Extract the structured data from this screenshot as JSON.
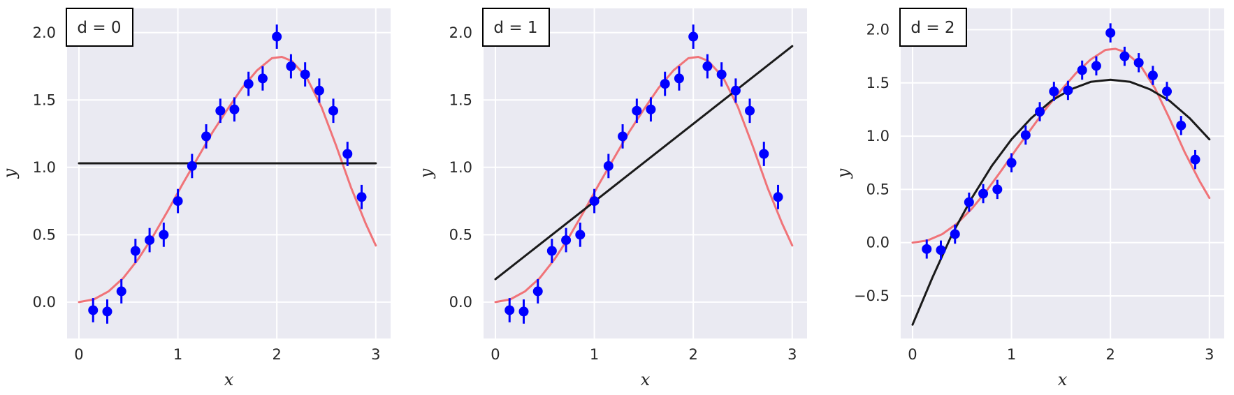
{
  "chart_data": [
    {
      "type": "scatter",
      "title": "",
      "legend": "d = 0",
      "legend_position": "top-left",
      "xlabel": "x",
      "ylabel": "y",
      "xlim": [
        -0.12,
        3.15
      ],
      "ylim": [
        -0.27,
        2.18
      ],
      "xticks": [
        0,
        1,
        2,
        3
      ],
      "xtick_labels": [
        "0",
        "1",
        "2",
        "3"
      ],
      "yticks": [
        0.0,
        0.5,
        1.0,
        1.5,
        2.0
      ],
      "ytick_labels": [
        "0.0",
        "0.5",
        "1.0",
        "1.5",
        "2.0"
      ],
      "grid": true,
      "fit_degree": 0
    },
    {
      "type": "scatter",
      "title": "",
      "legend": "d = 1",
      "legend_position": "top-left",
      "xlabel": "x",
      "ylabel": "y",
      "xlim": [
        -0.12,
        3.15
      ],
      "ylim": [
        -0.27,
        2.18
      ],
      "xticks": [
        0,
        1,
        2,
        3
      ],
      "xtick_labels": [
        "0",
        "1",
        "2",
        "3"
      ],
      "yticks": [
        0.0,
        0.5,
        1.0,
        1.5,
        2.0
      ],
      "ytick_labels": [
        "0.0",
        "0.5",
        "1.0",
        "1.5",
        "2.0"
      ],
      "grid": true,
      "fit_degree": 1
    },
    {
      "type": "scatter",
      "title": "",
      "legend": "d = 2",
      "legend_position": "top-left",
      "xlabel": "x",
      "ylabel": "y",
      "xlim": [
        -0.12,
        3.15
      ],
      "ylim": [
        -0.9,
        2.2
      ],
      "xticks": [
        0,
        1,
        2,
        3
      ],
      "xtick_labels": [
        "0",
        "1",
        "2",
        "3"
      ],
      "yticks": [
        -0.5,
        0.0,
        0.5,
        1.0,
        1.5,
        2.0
      ],
      "ytick_labels": [
        "−0.5",
        "0.0",
        "0.5",
        "1.0",
        "1.5",
        "2.0"
      ],
      "grid": true,
      "fit_degree": 2
    }
  ],
  "observations": {
    "x": [
      0.143,
      0.286,
      0.429,
      0.571,
      0.714,
      0.857,
      1.0,
      1.143,
      1.286,
      1.429,
      1.571,
      1.714,
      1.857,
      2.0,
      2.143,
      2.286,
      2.429,
      2.571,
      2.714,
      2.857
    ],
    "y": [
      -0.06,
      -0.07,
      0.08,
      0.38,
      0.46,
      0.5,
      0.75,
      1.01,
      1.23,
      1.42,
      1.43,
      1.62,
      1.66,
      1.97,
      1.75,
      1.69,
      1.57,
      1.42,
      1.1,
      0.78
    ],
    "error": 0.09
  },
  "true_curve": {
    "x": [
      0.0,
      0.15,
      0.3,
      0.45,
      0.6,
      0.75,
      0.9,
      1.05,
      1.2,
      1.35,
      1.5,
      1.65,
      1.8,
      1.95,
      2.05,
      2.15,
      2.3,
      2.45,
      2.6,
      2.75,
      2.9,
      3.0
    ],
    "y": [
      0.0,
      0.02,
      0.08,
      0.18,
      0.32,
      0.49,
      0.68,
      0.88,
      1.07,
      1.26,
      1.43,
      1.59,
      1.72,
      1.81,
      1.82,
      1.79,
      1.67,
      1.45,
      1.16,
      0.85,
      0.58,
      0.42
    ]
  },
  "fits": [
    {
      "x": [
        0.0,
        3.0
      ],
      "y": [
        1.03,
        1.03
      ]
    },
    {
      "x": [
        0.0,
        3.0
      ],
      "y": [
        0.17,
        1.9
      ]
    },
    {
      "x": [
        0.0,
        0.2,
        0.4,
        0.6,
        0.8,
        1.0,
        1.2,
        1.4,
        1.6,
        1.8,
        2.0,
        2.2,
        2.4,
        2.6,
        2.8,
        3.0
      ],
      "y": [
        -0.77,
        -0.33,
        0.08,
        0.42,
        0.72,
        0.97,
        1.17,
        1.33,
        1.44,
        1.51,
        1.53,
        1.51,
        1.44,
        1.33,
        1.17,
        0.97
      ]
    }
  ],
  "colors": {
    "background": "#eaeaf2",
    "grid": "#ffffff",
    "points": "#0000ff",
    "true_curve": "#f07378",
    "fit": "#1a1a1a",
    "legend_border": "#000000",
    "text": "#262626"
  }
}
